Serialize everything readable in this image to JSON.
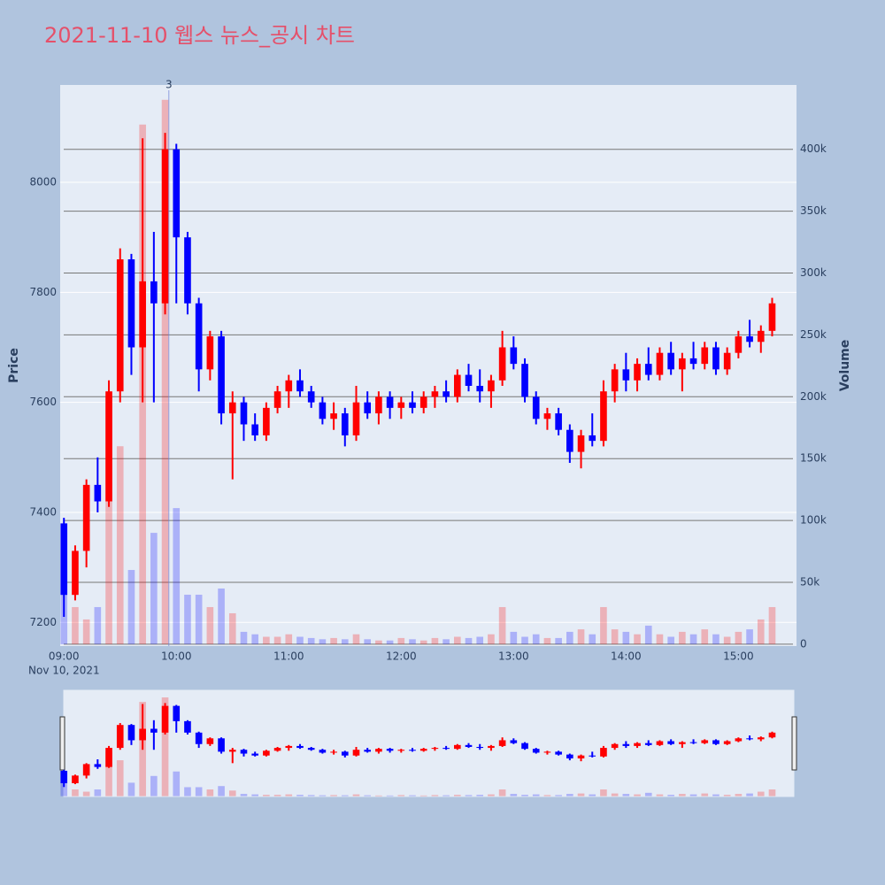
{
  "chart_data": {
    "type": "candlestick",
    "title": "2021-11-10 웹스 뉴스_공시 차트",
    "ylabel": "Price",
    "y2label": "Volume",
    "x_date_label": "Nov 10, 2021",
    "increasing_color": "#ff0000",
    "decreasing_color": "#0000ff",
    "x": [
      "09:00",
      "09:06",
      "09:12",
      "09:18",
      "09:24",
      "09:30",
      "09:36",
      "09:42",
      "09:48",
      "09:54",
      "10:00",
      "10:06",
      "10:12",
      "10:18",
      "10:24",
      "10:30",
      "10:36",
      "10:42",
      "10:48",
      "10:54",
      "11:00",
      "11:06",
      "11:12",
      "11:18",
      "11:24",
      "11:30",
      "11:36",
      "11:42",
      "11:48",
      "11:54",
      "12:00",
      "12:06",
      "12:12",
      "12:18",
      "12:24",
      "12:30",
      "12:36",
      "12:42",
      "12:48",
      "12:54",
      "13:00",
      "13:06",
      "13:12",
      "13:18",
      "13:24",
      "13:30",
      "13:36",
      "13:42",
      "13:48",
      "13:54",
      "14:00",
      "14:06",
      "14:12",
      "14:18",
      "14:24",
      "14:30",
      "14:36",
      "14:42",
      "14:48",
      "14:54",
      "15:00",
      "15:06",
      "15:12",
      "15:18"
    ],
    "open": [
      7380,
      7250,
      7330,
      7450,
      7420,
      7620,
      7860,
      7700,
      7820,
      7780,
      8060,
      7900,
      7780,
      7660,
      7720,
      7580,
      7600,
      7560,
      7540,
      7590,
      7620,
      7640,
      7620,
      7600,
      7570,
      7580,
      7540,
      7600,
      7580,
      7610,
      7590,
      7600,
      7590,
      7610,
      7620,
      7610,
      7650,
      7630,
      7620,
      7640,
      7700,
      7670,
      7610,
      7570,
      7580,
      7550,
      7510,
      7540,
      7530,
      7620,
      7660,
      7640,
      7670,
      7650,
      7690,
      7660,
      7680,
      7670,
      7700,
      7660,
      7690,
      7720,
      7710,
      7730
    ],
    "high": [
      7390,
      7340,
      7460,
      7500,
      7640,
      7880,
      7870,
      8080,
      7910,
      8090,
      8070,
      7910,
      7790,
      7730,
      7730,
      7620,
      7610,
      7580,
      7600,
      7630,
      7650,
      7660,
      7630,
      7610,
      7600,
      7590,
      7630,
      7620,
      7620,
      7620,
      7610,
      7620,
      7620,
      7630,
      7640,
      7660,
      7670,
      7660,
      7650,
      7730,
      7720,
      7680,
      7620,
      7590,
      7590,
      7560,
      7550,
      7580,
      7640,
      7670,
      7690,
      7680,
      7700,
      7700,
      7710,
      7690,
      7710,
      7710,
      7710,
      7700,
      7730,
      7750,
      7740,
      7790
    ],
    "low": [
      7210,
      7240,
      7300,
      7400,
      7410,
      7600,
      7650,
      7600,
      7600,
      7760,
      7780,
      7760,
      7620,
      7640,
      7560,
      7460,
      7530,
      7530,
      7530,
      7580,
      7590,
      7610,
      7590,
      7560,
      7550,
      7520,
      7530,
      7570,
      7560,
      7570,
      7570,
      7580,
      7580,
      7590,
      7600,
      7600,
      7620,
      7600,
      7590,
      7630,
      7660,
      7600,
      7560,
      7550,
      7540,
      7490,
      7480,
      7520,
      7520,
      7600,
      7620,
      7620,
      7640,
      7640,
      7650,
      7620,
      7660,
      7660,
      7650,
      7650,
      7680,
      7700,
      7690,
      7720
    ],
    "close": [
      7250,
      7330,
      7450,
      7420,
      7620,
      7860,
      7700,
      7820,
      7780,
      8060,
      7900,
      7780,
      7660,
      7720,
      7580,
      7600,
      7560,
      7540,
      7590,
      7620,
      7640,
      7620,
      7600,
      7570,
      7580,
      7540,
      7600,
      7580,
      7610,
      7590,
      7600,
      7590,
      7610,
      7620,
      7610,
      7650,
      7630,
      7620,
      7640,
      7700,
      7670,
      7610,
      7570,
      7580,
      7550,
      7510,
      7540,
      7530,
      7620,
      7660,
      7640,
      7670,
      7650,
      7690,
      7660,
      7680,
      7670,
      7700,
      7660,
      7690,
      7720,
      7710,
      7730,
      7780
    ],
    "volume": [
      60000,
      30000,
      20000,
      30000,
      200000,
      160000,
      60000,
      420000,
      90000,
      440000,
      110000,
      40000,
      40000,
      30000,
      45000,
      25000,
      10000,
      8000,
      6000,
      6000,
      8000,
      6000,
      5000,
      4000,
      5000,
      4000,
      8000,
      4000,
      3000,
      3000,
      5000,
      4000,
      3000,
      5000,
      4000,
      6000,
      5000,
      6000,
      8000,
      30000,
      10000,
      6000,
      8000,
      5000,
      5000,
      10000,
      12000,
      8000,
      30000,
      12000,
      10000,
      8000,
      15000,
      8000,
      6000,
      10000,
      8000,
      12000,
      8000,
      6000,
      10000,
      12000,
      20000,
      30000
    ],
    "xlim": [
      "08:58",
      "15:31"
    ],
    "xticks": [
      "09:00",
      "10:00",
      "11:00",
      "12:00",
      "13:00",
      "14:00",
      "15:00"
    ],
    "ylim": [
      7157,
      8177
    ],
    "yticks": [
      7200,
      7400,
      7600,
      7800,
      8000
    ],
    "y2lim": [
      -1500,
      452000
    ],
    "y2ticks": [
      0,
      {
        "value": 50000,
        "label": "50k"
      },
      {
        "value": 100000,
        "label": "100k"
      },
      {
        "value": 150000,
        "label": "150k"
      },
      {
        "value": 200000,
        "label": "200k"
      },
      {
        "value": 250000,
        "label": "250k"
      },
      {
        "value": 300000,
        "label": "300k"
      },
      {
        "value": 350000,
        "label": "350k"
      },
      {
        "value": 400000,
        "label": "400k"
      }
    ],
    "annotation": {
      "x": "09:56",
      "text": "3"
    }
  }
}
